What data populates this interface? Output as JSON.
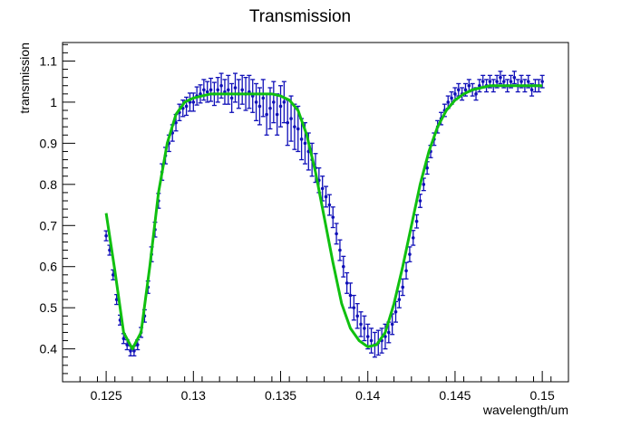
{
  "chart_data": {
    "type": "scatter",
    "title": "Transmission",
    "xlabel": "wavelength/um",
    "ylabel": "transmission",
    "xlim": [
      0.1225,
      0.1515
    ],
    "ylim": [
      0.32,
      1.145
    ],
    "grid": false,
    "legend": "none",
    "xticks": [
      0.125,
      0.13,
      0.135,
      0.14,
      0.145,
      0.15
    ],
    "xtick_labels": [
      "0.125",
      "0.13",
      "0.135",
      "0.14",
      "0.145",
      "0.15"
    ],
    "yticks": [
      0.4,
      0.5,
      0.6,
      0.7,
      0.8,
      0.9,
      1,
      1.1
    ],
    "ytick_labels": [
      "0.4",
      "0.5",
      "0.6",
      "0.7",
      "0.8",
      "0.9",
      "1",
      "1.1"
    ],
    "series": [
      {
        "kind": "points-with-error-bars",
        "color": "#1010b8",
        "x": [
          0.125,
          0.1252,
          0.1254,
          0.1256,
          0.1258,
          0.126,
          0.1262,
          0.1264,
          0.1266,
          0.1268,
          0.127,
          0.1272,
          0.1274,
          0.1276,
          0.1278,
          0.128,
          0.1282,
          0.1284,
          0.1286,
          0.1288,
          0.129,
          0.1292,
          0.1294,
          0.1296,
          0.1298,
          0.13,
          0.1302,
          0.1304,
          0.1306,
          0.1308,
          0.131,
          0.1312,
          0.1314,
          0.1316,
          0.1318,
          0.132,
          0.1322,
          0.1324,
          0.1326,
          0.1328,
          0.133,
          0.1332,
          0.1334,
          0.1336,
          0.1338,
          0.134,
          0.1342,
          0.1344,
          0.1346,
          0.1348,
          0.135,
          0.1352,
          0.1354,
          0.1356,
          0.1358,
          0.136,
          0.1362,
          0.1364,
          0.1366,
          0.1368,
          0.137,
          0.1372,
          0.1374,
          0.1376,
          0.1378,
          0.138,
          0.1382,
          0.1384,
          0.1386,
          0.1388,
          0.139,
          0.1392,
          0.1394,
          0.1396,
          0.1398,
          0.14,
          0.1402,
          0.1404,
          0.1406,
          0.1408,
          0.141,
          0.1412,
          0.1414,
          0.1416,
          0.1418,
          0.142,
          0.1422,
          0.1424,
          0.1426,
          0.1428,
          0.143,
          0.1432,
          0.1434,
          0.1436,
          0.1438,
          0.144,
          0.1442,
          0.1444,
          0.1446,
          0.1448,
          0.145,
          0.1452,
          0.1454,
          0.1456,
          0.1458,
          0.146,
          0.1462,
          0.1464,
          0.1466,
          0.1468,
          0.147,
          0.1472,
          0.1474,
          0.1476,
          0.1478,
          0.148,
          0.1482,
          0.1484,
          0.1486,
          0.1488,
          0.149,
          0.1492,
          0.1494,
          0.1496,
          0.1498,
          0.15
        ],
        "y": [
          0.675,
          0.64,
          0.58,
          0.52,
          0.47,
          0.425,
          0.41,
          0.395,
          0.395,
          0.41,
          0.44,
          0.48,
          0.55,
          0.63,
          0.69,
          0.76,
          0.83,
          0.87,
          0.9,
          0.925,
          0.95,
          0.975,
          0.985,
          0.99,
          1.0,
          1.0,
          1.015,
          1.02,
          1.03,
          1.025,
          1.03,
          1.02,
          1.03,
          1.04,
          1.025,
          1.03,
          1.01,
          1.035,
          1.02,
          1.03,
          1.02,
          1.025,
          1.015,
          1.0,
          0.99,
          1.01,
          0.97,
          0.985,
          1.0,
          0.97,
          0.99,
          1.0,
          0.95,
          0.96,
          0.94,
          0.935,
          0.91,
          0.9,
          0.88,
          0.86,
          0.84,
          0.81,
          0.79,
          0.77,
          0.75,
          0.72,
          0.68,
          0.64,
          0.6,
          0.56,
          0.53,
          0.5,
          0.48,
          0.46,
          0.45,
          0.43,
          0.42,
          0.41,
          0.415,
          0.42,
          0.43,
          0.44,
          0.46,
          0.49,
          0.52,
          0.55,
          0.59,
          0.63,
          0.67,
          0.71,
          0.76,
          0.8,
          0.84,
          0.88,
          0.91,
          0.94,
          0.96,
          0.98,
          1.0,
          1.01,
          1.02,
          1.03,
          1.02,
          1.03,
          1.04,
          1.03,
          1.02,
          1.04,
          1.05,
          1.04,
          1.05,
          1.04,
          1.05,
          1.06,
          1.05,
          1.04,
          1.05,
          1.06,
          1.04,
          1.05,
          1.04,
          1.05,
          1.03,
          1.04,
          1.04,
          1.05
        ],
        "err": [
          0.012,
          0.012,
          0.012,
          0.012,
          0.012,
          0.012,
          0.012,
          0.012,
          0.012,
          0.012,
          0.012,
          0.015,
          0.015,
          0.018,
          0.018,
          0.018,
          0.02,
          0.02,
          0.02,
          0.02,
          0.02,
          0.02,
          0.02,
          0.022,
          0.022,
          0.022,
          0.022,
          0.022,
          0.025,
          0.025,
          0.028,
          0.028,
          0.03,
          0.03,
          0.03,
          0.035,
          0.035,
          0.035,
          0.035,
          0.035,
          0.04,
          0.04,
          0.04,
          0.045,
          0.045,
          0.045,
          0.05,
          0.05,
          0.05,
          0.05,
          0.05,
          0.05,
          0.055,
          0.055,
          0.055,
          0.055,
          0.05,
          0.05,
          0.045,
          0.04,
          0.035,
          0.03,
          0.03,
          0.025,
          0.025,
          0.025,
          0.025,
          0.025,
          0.025,
          0.025,
          0.03,
          0.03,
          0.03,
          0.03,
          0.03,
          0.03,
          0.03,
          0.03,
          0.03,
          0.03,
          0.03,
          0.025,
          0.025,
          0.025,
          0.02,
          0.02,
          0.02,
          0.018,
          0.018,
          0.016,
          0.016,
          0.015,
          0.015,
          0.015,
          0.015,
          0.015,
          0.015,
          0.015,
          0.015,
          0.015,
          0.015,
          0.015,
          0.015,
          0.015,
          0.015,
          0.015,
          0.015,
          0.015,
          0.015,
          0.015,
          0.015,
          0.015,
          0.015,
          0.015,
          0.015,
          0.015,
          0.015,
          0.015,
          0.015,
          0.015,
          0.015,
          0.015,
          0.015,
          0.015,
          0.015,
          0.015
        ]
      },
      {
        "kind": "fit-line",
        "color": "#10c010",
        "x": [
          0.125,
          0.1255,
          0.126,
          0.1265,
          0.127,
          0.1275,
          0.128,
          0.1285,
          0.129,
          0.1295,
          0.13,
          0.1305,
          0.131,
          0.1315,
          0.132,
          0.1325,
          0.133,
          0.1335,
          0.134,
          0.1345,
          0.135,
          0.1355,
          0.136,
          0.1365,
          0.137,
          0.1375,
          0.138,
          0.1385,
          0.139,
          0.1395,
          0.14,
          0.1405,
          0.141,
          0.1415,
          0.142,
          0.1425,
          0.143,
          0.1435,
          0.144,
          0.1445,
          0.145,
          0.1455,
          0.146,
          0.1465,
          0.147,
          0.1475,
          0.148,
          0.1485,
          0.149,
          0.1495,
          0.15
        ],
        "y": [
          0.73,
          0.59,
          0.44,
          0.4,
          0.44,
          0.6,
          0.78,
          0.9,
          0.97,
          1.0,
          1.01,
          1.015,
          1.02,
          1.02,
          1.02,
          1.02,
          1.02,
          1.02,
          1.02,
          1.02,
          1.015,
          1.005,
          0.98,
          0.92,
          0.83,
          0.72,
          0.61,
          0.51,
          0.45,
          0.42,
          0.405,
          0.41,
          0.44,
          0.51,
          0.6,
          0.7,
          0.8,
          0.88,
          0.94,
          0.98,
          1.005,
          1.02,
          1.03,
          1.035,
          1.04,
          1.04,
          1.04,
          1.04,
          1.04,
          1.04,
          1.04
        ]
      }
    ]
  }
}
